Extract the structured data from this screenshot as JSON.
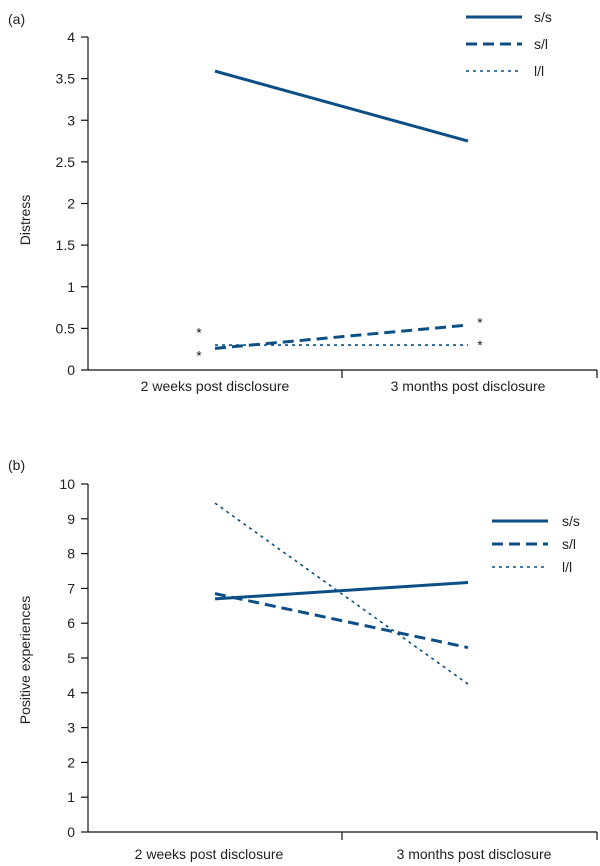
{
  "colors": {
    "series": "#0b4f86",
    "axis": "#111111",
    "text": "#222222"
  },
  "chart_data": [
    {
      "type": "line",
      "panel_label": "(a)",
      "ylabel": "Distress",
      "xlabel": "",
      "categories": [
        "2 weeks post disclosure",
        "3 months post disclosure"
      ],
      "ylim": [
        0,
        4
      ],
      "yticks": [
        0,
        0.5,
        1,
        1.5,
        2,
        2.5,
        3,
        3.5,
        4
      ],
      "ytick_labels": [
        "0",
        "0.5",
        "1",
        "1.5",
        "2",
        "2.5",
        "3",
        "3.5",
        "4"
      ],
      "grid": false,
      "legend_position": "top-right",
      "series": [
        {
          "name": "s/s",
          "style": "solid",
          "values": [
            3.59,
            2.75
          ]
        },
        {
          "name": "s/l",
          "style": "dashed",
          "values": [
            0.26,
            0.54
          ]
        },
        {
          "name": "l/l",
          "style": "dotted",
          "values": [
            0.3,
            0.3
          ]
        }
      ],
      "annotations": [
        {
          "text": "*",
          "category": 0,
          "value": 0.5
        },
        {
          "text": "*",
          "category": 0,
          "value": 0.22
        },
        {
          "text": "*",
          "category": 1,
          "value": 0.62
        },
        {
          "text": "*",
          "category": 1,
          "value": 0.35
        }
      ]
    },
    {
      "type": "line",
      "panel_label": "(b)",
      "ylabel": "Positive experiences",
      "xlabel": "",
      "categories": [
        "2 weeks post disclosure",
        "3 months post disclosure"
      ],
      "ylim": [
        0,
        10
      ],
      "yticks": [
        0,
        1,
        2,
        3,
        4,
        5,
        6,
        7,
        8,
        9,
        10
      ],
      "ytick_labels": [
        "0",
        "1",
        "2",
        "3",
        "4",
        "5",
        "6",
        "7",
        "8",
        "9",
        "10"
      ],
      "grid": false,
      "legend_position": "top-right",
      "series": [
        {
          "name": "s/s",
          "style": "solid",
          "values": [
            6.7,
            7.17
          ]
        },
        {
          "name": "s/l",
          "style": "dashed",
          "values": [
            6.85,
            5.3
          ]
        },
        {
          "name": "l/l",
          "style": "dotted",
          "values": [
            9.45,
            4.25
          ]
        }
      ],
      "annotations": []
    }
  ]
}
